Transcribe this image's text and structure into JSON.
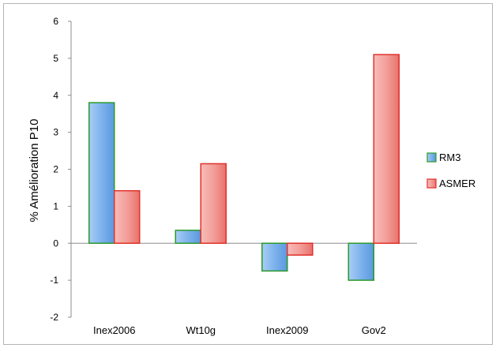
{
  "chart_data": {
    "type": "bar",
    "categories": [
      "Inex2006",
      "Wt10g",
      "Inex2009",
      "Gov2"
    ],
    "series": [
      {
        "name": "RM3",
        "values": [
          3.8,
          0.35,
          -0.75,
          -1.0
        ],
        "color": "#6fa8e8",
        "edge": "#2a9a2a"
      },
      {
        "name": "ASMER",
        "values": [
          1.42,
          2.15,
          -0.32,
          5.1
        ],
        "color": "#f29a96",
        "edge": "#e0312b"
      }
    ],
    "ylabel": "% Amélioration P10",
    "ylim": [
      -2,
      6
    ],
    "yticks": [
      -2,
      -1,
      0,
      1,
      2,
      3,
      4,
      5,
      6
    ],
    "grid": false,
    "legend": "right"
  }
}
